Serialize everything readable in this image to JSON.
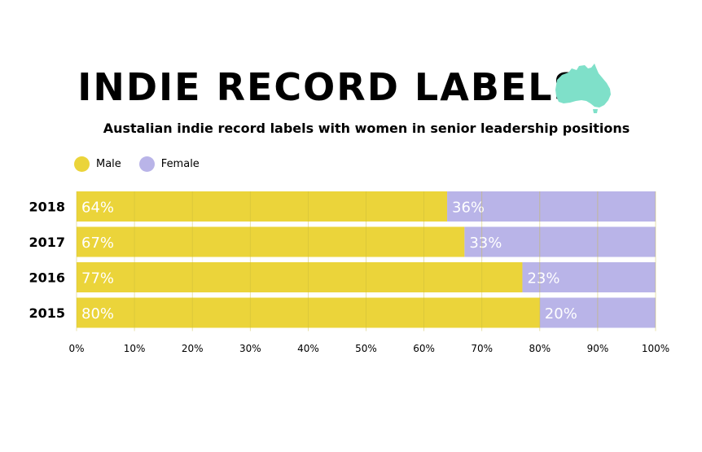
{
  "title": "INDIE RECORD LABELS",
  "subtitle": "Austalian indie record labels with women in senior leadership positions",
  "icon": "australia-map-icon",
  "colors": {
    "male": "#ebd43a",
    "female": "#b9b4e8",
    "map": "#7fe0c9",
    "grid": "#c9b93a"
  },
  "legend": [
    {
      "label": "Male",
      "color": "#ebd43a"
    },
    {
      "label": "Female",
      "color": "#b9b4e8"
    }
  ],
  "chart_data": {
    "type": "bar",
    "orientation": "horizontal",
    "stacked": true,
    "title": "INDIE RECORD LABELS",
    "subtitle": "Austalian indie record labels with women in senior leadership positions",
    "xlabel": "",
    "ylabel": "",
    "categories": [
      "2018",
      "2017",
      "2016",
      "2015"
    ],
    "series": [
      {
        "name": "Male",
        "values": [
          64,
          67,
          77,
          80
        ],
        "color": "#ebd43a"
      },
      {
        "name": "Female",
        "values": [
          36,
          33,
          23,
          20
        ],
        "color": "#b9b4e8"
      }
    ],
    "xlim": [
      0,
      100
    ],
    "x_ticks": [
      "0%",
      "10%",
      "20%",
      "30%",
      "40%",
      "50%",
      "60%",
      "70%",
      "80%",
      "90%",
      "100%"
    ],
    "data_labels": [
      [
        "64%",
        "67%",
        "77%",
        "80%"
      ],
      [
        "36%",
        "33%",
        "23%",
        "20%"
      ]
    ],
    "grid": true,
    "legend_position": "top-left"
  }
}
